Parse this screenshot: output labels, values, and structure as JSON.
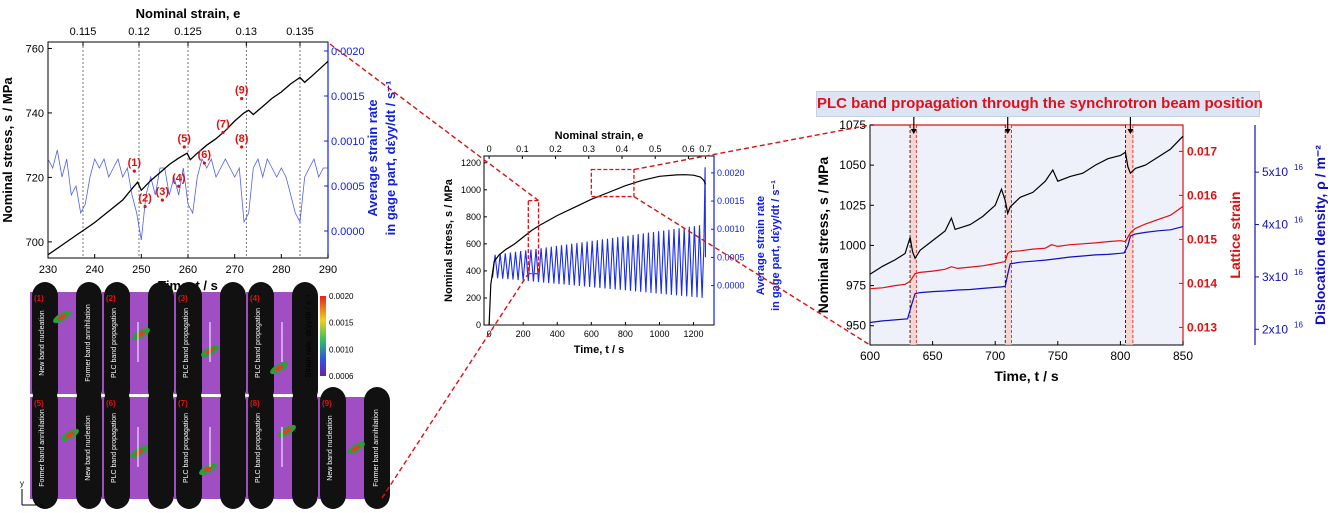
{
  "banner": "PLC band propagation through the synchrotron beam position",
  "colors": {
    "stress": "#000000",
    "rate": "#1020e0",
    "lattice": "#e01010",
    "disloc": "#1010c0",
    "zoom": "#e01010"
  },
  "chart_data": [
    {
      "id": "zoom-left",
      "type": "line",
      "title": "",
      "xlabel": "Time, t / s",
      "ylabel": "Nominal stress, s / MPa",
      "y2label_line1": "Average strain rate",
      "y2label_line2": "in gage part, dε̇yy/dt / s⁻¹",
      "top_xlabel": "Nominal strain, e",
      "xlim": [
        230,
        290
      ],
      "ylim": [
        695,
        762
      ],
      "y2lim": [
        -0.0003,
        0.0021
      ],
      "xticks": [
        "230",
        "240",
        "250",
        "260",
        "270",
        "280",
        "290"
      ],
      "yticks": [
        "700",
        "720",
        "740",
        "760"
      ],
      "y2ticks": [
        "0.0000",
        "0.0005",
        "0.0010",
        "0.0015",
        "0.0020"
      ],
      "top_ticks": [
        {
          "t": 237.5,
          "label": "0.115"
        },
        {
          "t": 249.5,
          "label": "0.12"
        },
        {
          "t": 260.0,
          "label": "0.125"
        },
        {
          "t": 272.5,
          "label": "0.13"
        },
        {
          "t": 284.0,
          "label": "0.135"
        }
      ],
      "series": [
        {
          "axis": "left",
          "color": "#000000",
          "x": [
            230,
            233,
            236,
            237.5,
            240,
            243,
            246,
            248,
            249.2,
            250,
            252,
            254,
            256,
            258,
            259.8,
            260.5,
            262,
            264,
            266,
            268,
            270,
            272,
            273,
            274,
            276,
            278,
            280,
            282,
            284,
            285,
            287,
            290
          ],
          "y": [
            696,
            699,
            702,
            703.5,
            706,
            709.5,
            713,
            716.5,
            718.5,
            716,
            719,
            721.5,
            724,
            726,
            727.5,
            725.5,
            727.5,
            730,
            732,
            734.5,
            737.5,
            740,
            740.8,
            739.5,
            742,
            744.5,
            746.5,
            749,
            751,
            749.5,
            752,
            756
          ]
        },
        {
          "axis": "right",
          "color": "#3344e6",
          "x": [
            230,
            231,
            232,
            233,
            234,
            235,
            236,
            237,
            238,
            239,
            240,
            241,
            242,
            243,
            244,
            245,
            246,
            247,
            248,
            249,
            250,
            251,
            252,
            253,
            254,
            255,
            256,
            257,
            258,
            259,
            260,
            261,
            262,
            263,
            264,
            265,
            266,
            267,
            268,
            269,
            270,
            271,
            272,
            273,
            274,
            275,
            276,
            277,
            278,
            279,
            280,
            281,
            282,
            283,
            284,
            285,
            286,
            287,
            288,
            289,
            290
          ],
          "y": [
            0.0008,
            0.0007,
            0.0009,
            0.0006,
            0.0008,
            0.0004,
            0.0005,
            0.0002,
            0.0003,
            0.0006,
            0.0008,
            0.0007,
            0.0008,
            0.0006,
            0.0007,
            0.0008,
            0.0006,
            0.0007,
            0.0004,
            0.0002,
            -0.0001,
            0.0004,
            0.0006,
            0.0004,
            0.0007,
            0.0007,
            0.0004,
            0.0006,
            0.0004,
            0.0007,
            0.0003,
            0.0002,
            0.0006,
            0.0008,
            0.0007,
            0.0008,
            0.0006,
            0.0007,
            0.0008,
            0.0007,
            0.0006,
            0.0007,
            0.0001,
            0.0002,
            0.0007,
            0.0008,
            0.0006,
            0.0008,
            0.0007,
            0.0006,
            0.0007,
            0.0006,
            0.0004,
            0.0002,
            0.0001,
            0.0006,
            0.0007,
            0.0008,
            0.0006,
            0.0007,
            0.0007
          ]
        }
      ],
      "annotations": [
        {
          "label": "(1)",
          "t": 248.5,
          "v": 723.5
        },
        {
          "label": "(2)",
          "t": 250.8,
          "v": 712.5
        },
        {
          "label": "(3)",
          "t": 254.5,
          "v": 714.5
        },
        {
          "label": "(4)",
          "t": 258.0,
          "v": 718.8
        },
        {
          "label": "(5)",
          "t": 259.2,
          "v": 731
        },
        {
          "label": "(6)",
          "t": 263.5,
          "v": 726
        },
        {
          "label": "(7)",
          "t": 267.5,
          "v": 735.5
        },
        {
          "label": "(8)",
          "t": 271.5,
          "v": 731
        },
        {
          "label": "(9)",
          "t": 271.5,
          "v": 746
        }
      ]
    },
    {
      "id": "overview",
      "type": "line",
      "title": "",
      "xlabel": "Time, t / s",
      "ylabel": "Nominal stress, s / MPa",
      "y2label_line1": "Average strain rate",
      "y2label_line2": "in gage part, dε̇yy/dt / s⁻¹",
      "top_xlabel": "Nominal strain, e",
      "xlim": [
        -30,
        1320
      ],
      "ylim": [
        0,
        1250
      ],
      "y2lim": [
        -0.0007,
        0.0023
      ],
      "xticks": [
        {
          "v": 0,
          "l": "0"
        },
        {
          "v": 200,
          "l": "200"
        },
        {
          "v": 400,
          "l": "400"
        },
        {
          "v": 600,
          "l": "600"
        },
        {
          "v": 800,
          "l": "800"
        },
        {
          "v": 1000,
          "l": "1000"
        },
        {
          "v": 1200,
          "l": "1200"
        }
      ],
      "yticks": [
        "0",
        "200",
        "400",
        "600",
        "800",
        "1000",
        "1200"
      ],
      "y2ticks": [
        "0.0000",
        "0.0005",
        "0.0010",
        "0.0015",
        "0.0020"
      ],
      "top_ticks": [
        {
          "t": 0,
          "label": "0"
        },
        {
          "t": 195,
          "label": "0.1"
        },
        {
          "t": 390,
          "label": "0.2"
        },
        {
          "t": 585,
          "label": "0.3"
        },
        {
          "t": 780,
          "label": "0.4"
        },
        {
          "t": 975,
          "label": "0.5"
        },
        {
          "t": 1170,
          "label": "0.6"
        },
        {
          "t": 1270,
          "label": "0.7"
        }
      ],
      "stress_curve": {
        "x": [
          0,
          10,
          30,
          60,
          100,
          150,
          200,
          250,
          300,
          400,
          500,
          600,
          700,
          800,
          900,
          1000,
          1100,
          1150,
          1200,
          1240,
          1260,
          1270
        ],
        "y": [
          0,
          300,
          470,
          520,
          560,
          600,
          650,
          700,
          740,
          810,
          870,
          930,
          980,
          1030,
          1070,
          1100,
          1110,
          1112,
          1108,
          1095,
          1070,
          1040
        ]
      },
      "rate_band": {
        "start": 20,
        "end": 1260,
        "period": 30,
        "base": 0.0003,
        "amplitude_start": 0.0004,
        "amplitude_end": 0.0013,
        "spike_top": 0.0021
      },
      "zoom_boxes": [
        {
          "x": [
            230,
            290
          ],
          "y": [
            695,
            760
          ],
          "label": "left"
        },
        {
          "x": [
            600,
            850
          ],
          "y": [
            950,
            1150
          ],
          "label": "right"
        }
      ]
    },
    {
      "id": "zoom-right",
      "type": "line",
      "title": "",
      "xlabel": "Time, t / s",
      "ylabel": "Nominal stress, s / MPa",
      "y2label": "Lattice strain",
      "y3label": "Dislocation density, ρ / m⁻²",
      "xlim": [
        600,
        850
      ],
      "ylim": [
        938,
        1075
      ],
      "y2lim": [
        0.0126,
        0.0176
      ],
      "y3lim": [
        1.7e+16,
        5.9e+16
      ],
      "xticks": [
        "600",
        "650",
        "700",
        "750",
        "800",
        "850"
      ],
      "yticks": [
        "950",
        "975",
        "1000",
        "1025",
        "1050",
        "1075"
      ],
      "y2ticks": [
        "0.013",
        "0.014",
        "0.015",
        "0.016",
        "0.017"
      ],
      "y3ticks": [
        {
          "v": 2e+16,
          "mant": "2x10",
          "exp": "16"
        },
        {
          "v": 3e+16,
          "mant": "3x10",
          "exp": "16"
        },
        {
          "v": 4e+16,
          "mant": "4x10",
          "exp": "16"
        },
        {
          "v": 5e+16,
          "mant": "5x10",
          "exp": "16"
        }
      ],
      "bands": [
        [
          632,
          637
        ],
        [
          708,
          713
        ],
        [
          804,
          810
        ]
      ],
      "arrows": [
        635,
        710,
        808
      ],
      "series": [
        {
          "name": "stress",
          "axis": "y1",
          "color": "#000000",
          "x": [
            600,
            610,
            620,
            628,
            632,
            634,
            636,
            640,
            650,
            660,
            665,
            668,
            680,
            690,
            700,
            705,
            708,
            710,
            712,
            720,
            730,
            740,
            746,
            750,
            760,
            770,
            780,
            790,
            800,
            804,
            806,
            808,
            812,
            820,
            830,
            840,
            850
          ],
          "y": [
            982,
            987,
            991,
            995,
            1005,
            996,
            992,
            997,
            1003,
            1009,
            1017,
            1010,
            1013,
            1018,
            1025,
            1035,
            1028,
            1020,
            1024,
            1030,
            1033,
            1040,
            1047,
            1040,
            1043,
            1045,
            1050,
            1054,
            1056,
            1058,
            1049,
            1045,
            1048,
            1050,
            1055,
            1060,
            1068
          ]
        },
        {
          "name": "lattice",
          "axis": "y2",
          "color": "#e01010",
          "x": [
            600,
            610,
            620,
            628,
            632,
            636,
            640,
            650,
            660,
            665,
            670,
            680,
            690,
            700,
            705,
            708,
            710,
            712,
            720,
            730,
            740,
            745,
            750,
            760,
            770,
            780,
            790,
            800,
            804,
            808,
            812,
            820,
            830,
            840,
            850
          ],
          "y": [
            0.01388,
            0.0139,
            0.01395,
            0.01398,
            0.01405,
            0.01422,
            0.01425,
            0.01428,
            0.01432,
            0.01438,
            0.01434,
            0.01437,
            0.0144,
            0.01445,
            0.01448,
            0.0145,
            0.01468,
            0.01472,
            0.01474,
            0.01478,
            0.0148,
            0.01488,
            0.01484,
            0.01488,
            0.0149,
            0.01492,
            0.01495,
            0.01497,
            0.01495,
            0.01515,
            0.01525,
            0.01535,
            0.01545,
            0.01555,
            0.01575
          ]
        },
        {
          "name": "dislocation",
          "axis": "y3",
          "color": "#1010c0",
          "x": [
            600,
            610,
            620,
            630,
            633,
            636,
            640,
            650,
            660,
            670,
            680,
            690,
            700,
            705,
            708,
            710,
            712,
            720,
            730,
            740,
            750,
            760,
            770,
            780,
            790,
            800,
            803,
            806,
            808,
            812,
            820,
            830,
            840,
            850
          ],
          "y": [
            2.13e+16,
            2.16e+16,
            2.18e+16,
            2.2e+16,
            2.45e+16,
            2.68e+16,
            2.7e+16,
            2.72e+16,
            2.73e+16,
            2.75e+16,
            2.76e+16,
            2.78e+16,
            2.8e+16,
            2.81e+16,
            2.82e+16,
            3.05e+16,
            3.25e+16,
            3.28e+16,
            3.3e+16,
            3.32e+16,
            3.35e+16,
            3.38e+16,
            3.4e+16,
            3.42e+16,
            3.43e+16,
            3.45e+16,
            3.46e+16,
            3.6e+16,
            3.78e+16,
            3.82e+16,
            3.85e+16,
            3.88e+16,
            3.9e+16,
            3.96e+16
          ]
        }
      ]
    }
  ],
  "dic": {
    "panels": [
      {
        "label": "(1)",
        "text": "New band nucleation",
        "text2": "Former band annihilation"
      },
      {
        "label": "(2)",
        "text": "PLC band propagation",
        "text2": ""
      },
      {
        "label": "(3)",
        "text": "PLC band propagation",
        "text2": ""
      },
      {
        "label": "(4)",
        "text": "PLC band propagation",
        "text2": ""
      },
      {
        "label": "(5)",
        "text": "Former band annihilation",
        "text2": "New band nucleation"
      },
      {
        "label": "(6)",
        "text": "PLC band propagation",
        "text2": ""
      },
      {
        "label": "(7)",
        "text": "PLC band propagation",
        "text2": ""
      },
      {
        "label": "(8)",
        "text": "PLC band propagation",
        "text2": ""
      },
      {
        "label": "(9)",
        "text": "New band nucleation",
        "text2": "Former band annihilation"
      }
    ],
    "colorbar_title": "Strain rate, dε̇yy/dt / s⁻¹",
    "colorbar_ticks": [
      "0.0020",
      "0.0015",
      "0.0010",
      "0.0006"
    ],
    "axis_x": "x",
    "axis_y": "y"
  }
}
